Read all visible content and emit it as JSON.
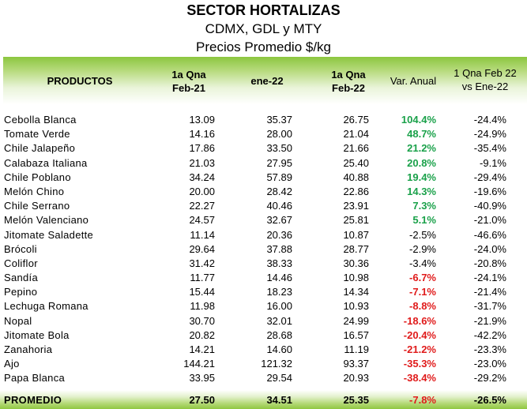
{
  "title": "SECTOR HORTALIZAS",
  "subtitle": "CDMX, GDL y MTY",
  "subtitle2": "Precios Promedio $/kg",
  "headers": {
    "productos": "PRODUCTOS",
    "col1_line1": "1a Qna",
    "col1_line2": "Feb-21",
    "col2": "ene-22",
    "col3_line1": "1a Qna",
    "col3_line2": "Feb-22",
    "col4": "Var. Anual",
    "col5_line1": "1 Qna Feb 22",
    "col5_line2": "vs Ene-22"
  },
  "rows": [
    {
      "name": "Cebolla Blanca",
      "feb21": "13.09",
      "ene22": "35.37",
      "feb22": "26.75",
      "var": "104.4%",
      "vs": "-24.4%",
      "tone": "pos"
    },
    {
      "name": "Tomate Verde",
      "feb21": "14.16",
      "ene22": "28.00",
      "feb22": "21.04",
      "var": "48.7%",
      "vs": "-24.9%",
      "tone": "pos"
    },
    {
      "name": "Chile Jalapeño",
      "feb21": "17.86",
      "ene22": "33.50",
      "feb22": "21.66",
      "var": "21.2%",
      "vs": "-35.4%",
      "tone": "pos"
    },
    {
      "name": "Calabaza Italiana",
      "feb21": "21.03",
      "ene22": "27.95",
      "feb22": "25.40",
      "var": "20.8%",
      "vs": "-9.1%",
      "tone": "pos"
    },
    {
      "name": "Chile Poblano",
      "feb21": "34.24",
      "ene22": "57.89",
      "feb22": "40.88",
      "var": "19.4%",
      "vs": "-29.4%",
      "tone": "pos"
    },
    {
      "name": "Melón Chino",
      "feb21": "20.00",
      "ene22": "28.42",
      "feb22": "22.86",
      "var": "14.3%",
      "vs": "-19.6%",
      "tone": "pos"
    },
    {
      "name": "Chile Serrano",
      "feb21": "22.27",
      "ene22": "40.46",
      "feb22": "23.91",
      "var": "7.3%",
      "vs": "-40.9%",
      "tone": "pos"
    },
    {
      "name": "Melón Valenciano",
      "feb21": "24.57",
      "ene22": "32.67",
      "feb22": "25.81",
      "var": "5.1%",
      "vs": "-21.0%",
      "tone": "pos"
    },
    {
      "name": "Jitomate Saladette",
      "feb21": "11.14",
      "ene22": "20.36",
      "feb22": "10.87",
      "var": "-2.5%",
      "vs": "-46.6%",
      "tone": "zero"
    },
    {
      "name": "Brócoli",
      "feb21": "29.64",
      "ene22": "37.88",
      "feb22": "28.77",
      "var": "-2.9%",
      "vs": "-24.0%",
      "tone": "zero"
    },
    {
      "name": "Coliflor",
      "feb21": "31.42",
      "ene22": "38.33",
      "feb22": "30.36",
      "var": "-3.4%",
      "vs": "-20.8%",
      "tone": "zero"
    },
    {
      "name": "Sandía",
      "feb21": "11.77",
      "ene22": "14.46",
      "feb22": "10.98",
      "var": "-6.7%",
      "vs": "-24.1%",
      "tone": "neg"
    },
    {
      "name": "Pepino",
      "feb21": "15.44",
      "ene22": "18.23",
      "feb22": "14.34",
      "var": "-7.1%",
      "vs": "-21.4%",
      "tone": "neg"
    },
    {
      "name": "Lechuga Romana",
      "feb21": "11.98",
      "ene22": "16.00",
      "feb22": "10.93",
      "var": "-8.8%",
      "vs": "-31.7%",
      "tone": "neg"
    },
    {
      "name": "Nopal",
      "feb21": "30.70",
      "ene22": "32.01",
      "feb22": "24.99",
      "var": "-18.6%",
      "vs": "-21.9%",
      "tone": "neg"
    },
    {
      "name": "Jitomate Bola",
      "feb21": "20.82",
      "ene22": "28.68",
      "feb22": "16.57",
      "var": "-20.4%",
      "vs": "-42.2%",
      "tone": "neg"
    },
    {
      "name": "Zanahoria",
      "feb21": "14.21",
      "ene22": "14.60",
      "feb22": "11.19",
      "var": "-21.2%",
      "vs": "-23.3%",
      "tone": "neg"
    },
    {
      "name": "Ajo",
      "feb21": "144.21",
      "ene22": "121.32",
      "feb22": "93.37",
      "var": "-35.3%",
      "vs": "-23.0%",
      "tone": "neg"
    },
    {
      "name": "Papa Blanca",
      "feb21": "33.95",
      "ene22": "29.54",
      "feb22": "20.93",
      "var": "-38.4%",
      "vs": "-29.2%",
      "tone": "neg"
    }
  ],
  "footer": {
    "label": "PROMEDIO",
    "feb21": "27.50",
    "ene22": "34.51",
    "feb22": "25.35",
    "var": "-7.8%",
    "vs": "-26.5%",
    "tone": "neg"
  },
  "colors": {
    "header_green": "#8cc63f",
    "positive": "#1aa14a",
    "negative": "#e01b1b"
  }
}
